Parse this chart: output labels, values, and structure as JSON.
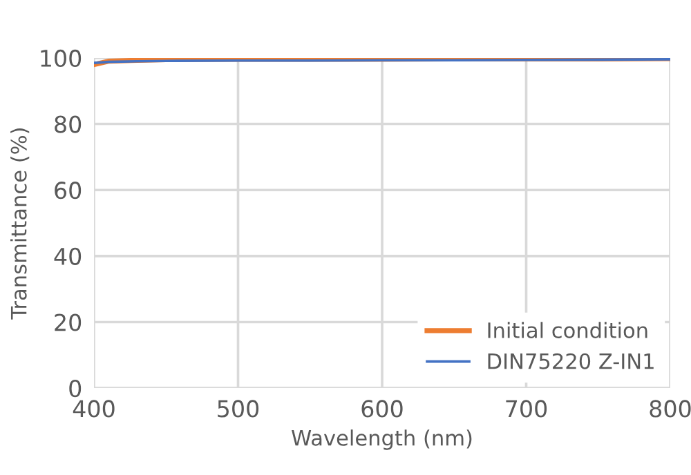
{
  "chart_data": {
    "type": "line",
    "xlabel": "Wavelength (nm)",
    "ylabel": "Transmittance (%)",
    "series": [
      {
        "name": "Initial condition",
        "color": "#ed7d31",
        "x": [
          400,
          410,
          430,
          450,
          500,
          550,
          600,
          650,
          700,
          750,
          800
        ],
        "values": [
          98.0,
          99.0,
          99.3,
          99.5,
          99.6,
          99.6,
          99.6,
          99.7,
          99.7,
          99.7,
          99.8
        ]
      },
      {
        "name": "DIN75220 Z-IN1",
        "color": "#4472c4",
        "x": [
          400,
          410,
          430,
          450,
          500,
          550,
          600,
          650,
          700,
          750,
          800
        ],
        "values": [
          98.5,
          98.8,
          99.0,
          99.1,
          99.2,
          99.2,
          99.3,
          99.3,
          99.4,
          99.5,
          99.6
        ]
      }
    ],
    "xlim": [
      400,
      800
    ],
    "xticks": [
      400,
      500,
      600,
      700,
      800
    ],
    "ylim": [
      0,
      100
    ],
    "yticks": [
      0,
      20,
      40,
      60,
      80,
      100
    ],
    "grid": true,
    "legend": "bottom right",
    "line_style": "solid",
    "marker": "none"
  }
}
